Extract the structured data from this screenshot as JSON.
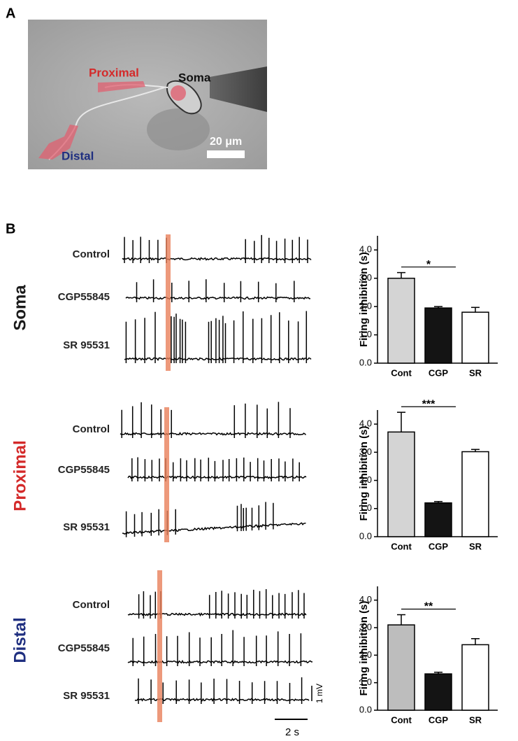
{
  "panels": {
    "a": "A",
    "b": "B"
  },
  "image": {
    "proximal": "Proximal",
    "soma": "Soma",
    "distal": "Distal",
    "scale": "20 μm"
  },
  "rows": [
    {
      "title": "Soma",
      "color": "#1a1a1a",
      "traces": [
        "Control",
        "CGP55845",
        "SR 95531"
      ]
    },
    {
      "title": "Proximal",
      "color": "#d42a2a",
      "traces": [
        "Control",
        "CGP55845",
        "SR 95531"
      ]
    },
    {
      "title": "Distal",
      "color": "#1f2f80",
      "traces": [
        "Control",
        "CGP55845",
        "SR 95531"
      ]
    }
  ],
  "scalebar": {
    "voltage": "1 mV",
    "time": "2 s"
  },
  "chart_data": [
    {
      "type": "bar",
      "ylabel": "Firing inhibition (s)",
      "categories": [
        "Cont",
        "CGP",
        "SR"
      ],
      "values": [
        3.0,
        1.95,
        1.8
      ],
      "errors": [
        0.2,
        0.05,
        0.17
      ],
      "colors": [
        "#d4d4d4",
        "#141414",
        "#ffffff"
      ],
      "ylim": [
        0,
        4.5
      ],
      "yticks": [
        {
          "value": 0,
          "label": "0.0"
        },
        {
          "value": 1,
          "label": "1.0"
        },
        {
          "value": 2,
          "label": "2.0"
        },
        {
          "value": 3,
          "label": "3.0"
        },
        {
          "value": 4,
          "label": "4.0"
        }
      ],
      "annotation": "*"
    },
    {
      "type": "bar",
      "ylabel": "Firing inhibition (s)",
      "categories": [
        "Cont",
        "CGP",
        "SR"
      ],
      "values": [
        3.72,
        1.2,
        3.02
      ],
      "errors": [
        0.7,
        0.05,
        0.08
      ],
      "colors": [
        "#d4d4d4",
        "#141414",
        "#ffffff"
      ],
      "ylim": [
        0,
        4.5
      ],
      "yticks": [
        {
          "value": 0,
          "label": "0.0"
        },
        {
          "value": 1,
          "label": "1.0"
        },
        {
          "value": 2,
          "label": "2.0"
        },
        {
          "value": 3,
          "label": "3.0"
        },
        {
          "value": 4,
          "label": "4.0"
        }
      ],
      "annotation": "***"
    },
    {
      "type": "bar",
      "ylabel": "Firing inhibition (s)",
      "categories": [
        "Cont",
        "CGP",
        "SR"
      ],
      "values": [
        3.1,
        1.32,
        2.38
      ],
      "errors": [
        0.37,
        0.06,
        0.22
      ],
      "colors": [
        "#bdbdbd",
        "#141414",
        "#ffffff"
      ],
      "ylim": [
        0,
        4.5
      ],
      "yticks": [
        {
          "value": 0,
          "label": "0.0"
        },
        {
          "value": 1,
          "label": "1.0"
        },
        {
          "value": 2,
          "label": "2.0"
        },
        {
          "value": 3,
          "label": "3.0"
        },
        {
          "value": 4,
          "label": "4.0"
        }
      ],
      "annotation": "**"
    }
  ]
}
